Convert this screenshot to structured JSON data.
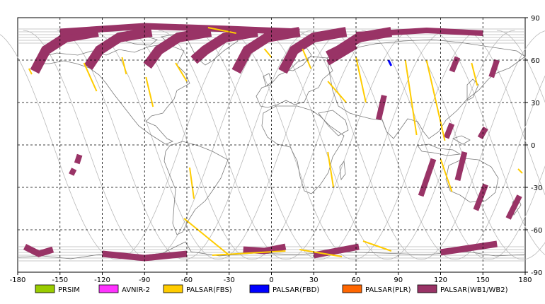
{
  "map": {
    "lon_range": [
      -180,
      180
    ],
    "lat_range": [
      -90,
      90
    ],
    "x_ticks": [
      "-180",
      "-150",
      "-120",
      "-90",
      "-60",
      "-30",
      "0",
      "30",
      "60",
      "90",
      "120",
      "150",
      "180"
    ],
    "y_ticks": [
      "90",
      "60",
      "30",
      "0",
      "-30",
      "-60",
      "-90"
    ],
    "grid": true,
    "grid_style": "dashed",
    "background": "#ffffff",
    "coastline_color": "#7a7a7a",
    "orbit_track_color": "#b8b8b8"
  },
  "legend": [
    {
      "label": "PRSIM",
      "color": "#99cc00"
    },
    {
      "label": "AVNIR-2",
      "color": "#ff33ff"
    },
    {
      "label": "PALSAR(FBS)",
      "color": "#ffcc00"
    },
    {
      "label": "PALSAR(FBD)",
      "color": "#0000ff"
    },
    {
      "label": "PALSAR(PLR)",
      "color": "#ff6600"
    },
    {
      "label": "PALSAR(WB1/WB2)",
      "color": "#993366"
    }
  ]
}
